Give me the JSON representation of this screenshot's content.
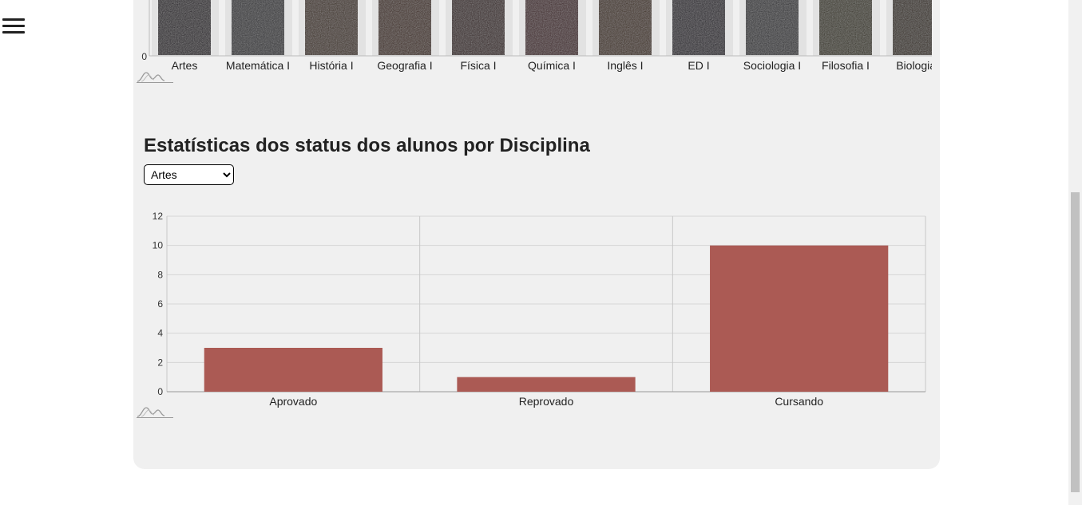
{
  "menu": {
    "icon": "hamburger-menu-icon"
  },
  "top_chart": {
    "chart_data": {
      "type": "bar",
      "categories": [
        "Artes",
        "Matemática I",
        "História I",
        "Geografia I",
        "Física I",
        "Química I",
        "Inglês I",
        "ED I",
        "Sociologia I",
        "Filosofia I",
        "Biologia I"
      ],
      "y_tick_visible": [
        "0"
      ],
      "bar_colors": [
        "#1e1820",
        "#2a2a2e",
        "#3a2a1c",
        "#3a2418",
        "#2e1a1a",
        "#3a1a1e",
        "#3a2616",
        "#1e1a22",
        "#2c2c30",
        "#333020",
        "#2e2416"
      ]
    }
  },
  "section": {
    "title": "Estatísticas dos status dos alunos por Disciplina",
    "select": {
      "value": "Artes",
      "options": [
        "Artes"
      ]
    }
  },
  "status_chart": {
    "chart_data": {
      "type": "bar",
      "categories": [
        "Aprovado",
        "Reprovado",
        "Cursando"
      ],
      "values": [
        3,
        1,
        10
      ],
      "ylim": [
        0,
        12
      ],
      "yticks": [
        0,
        2,
        4,
        6,
        8,
        10,
        12
      ],
      "grid": true,
      "bar_color": "#ab5a54"
    }
  },
  "colors": {
    "panel_bg": "#f0f0f0",
    "bar": "#ab5a54",
    "grid": "#d6d6d6"
  }
}
